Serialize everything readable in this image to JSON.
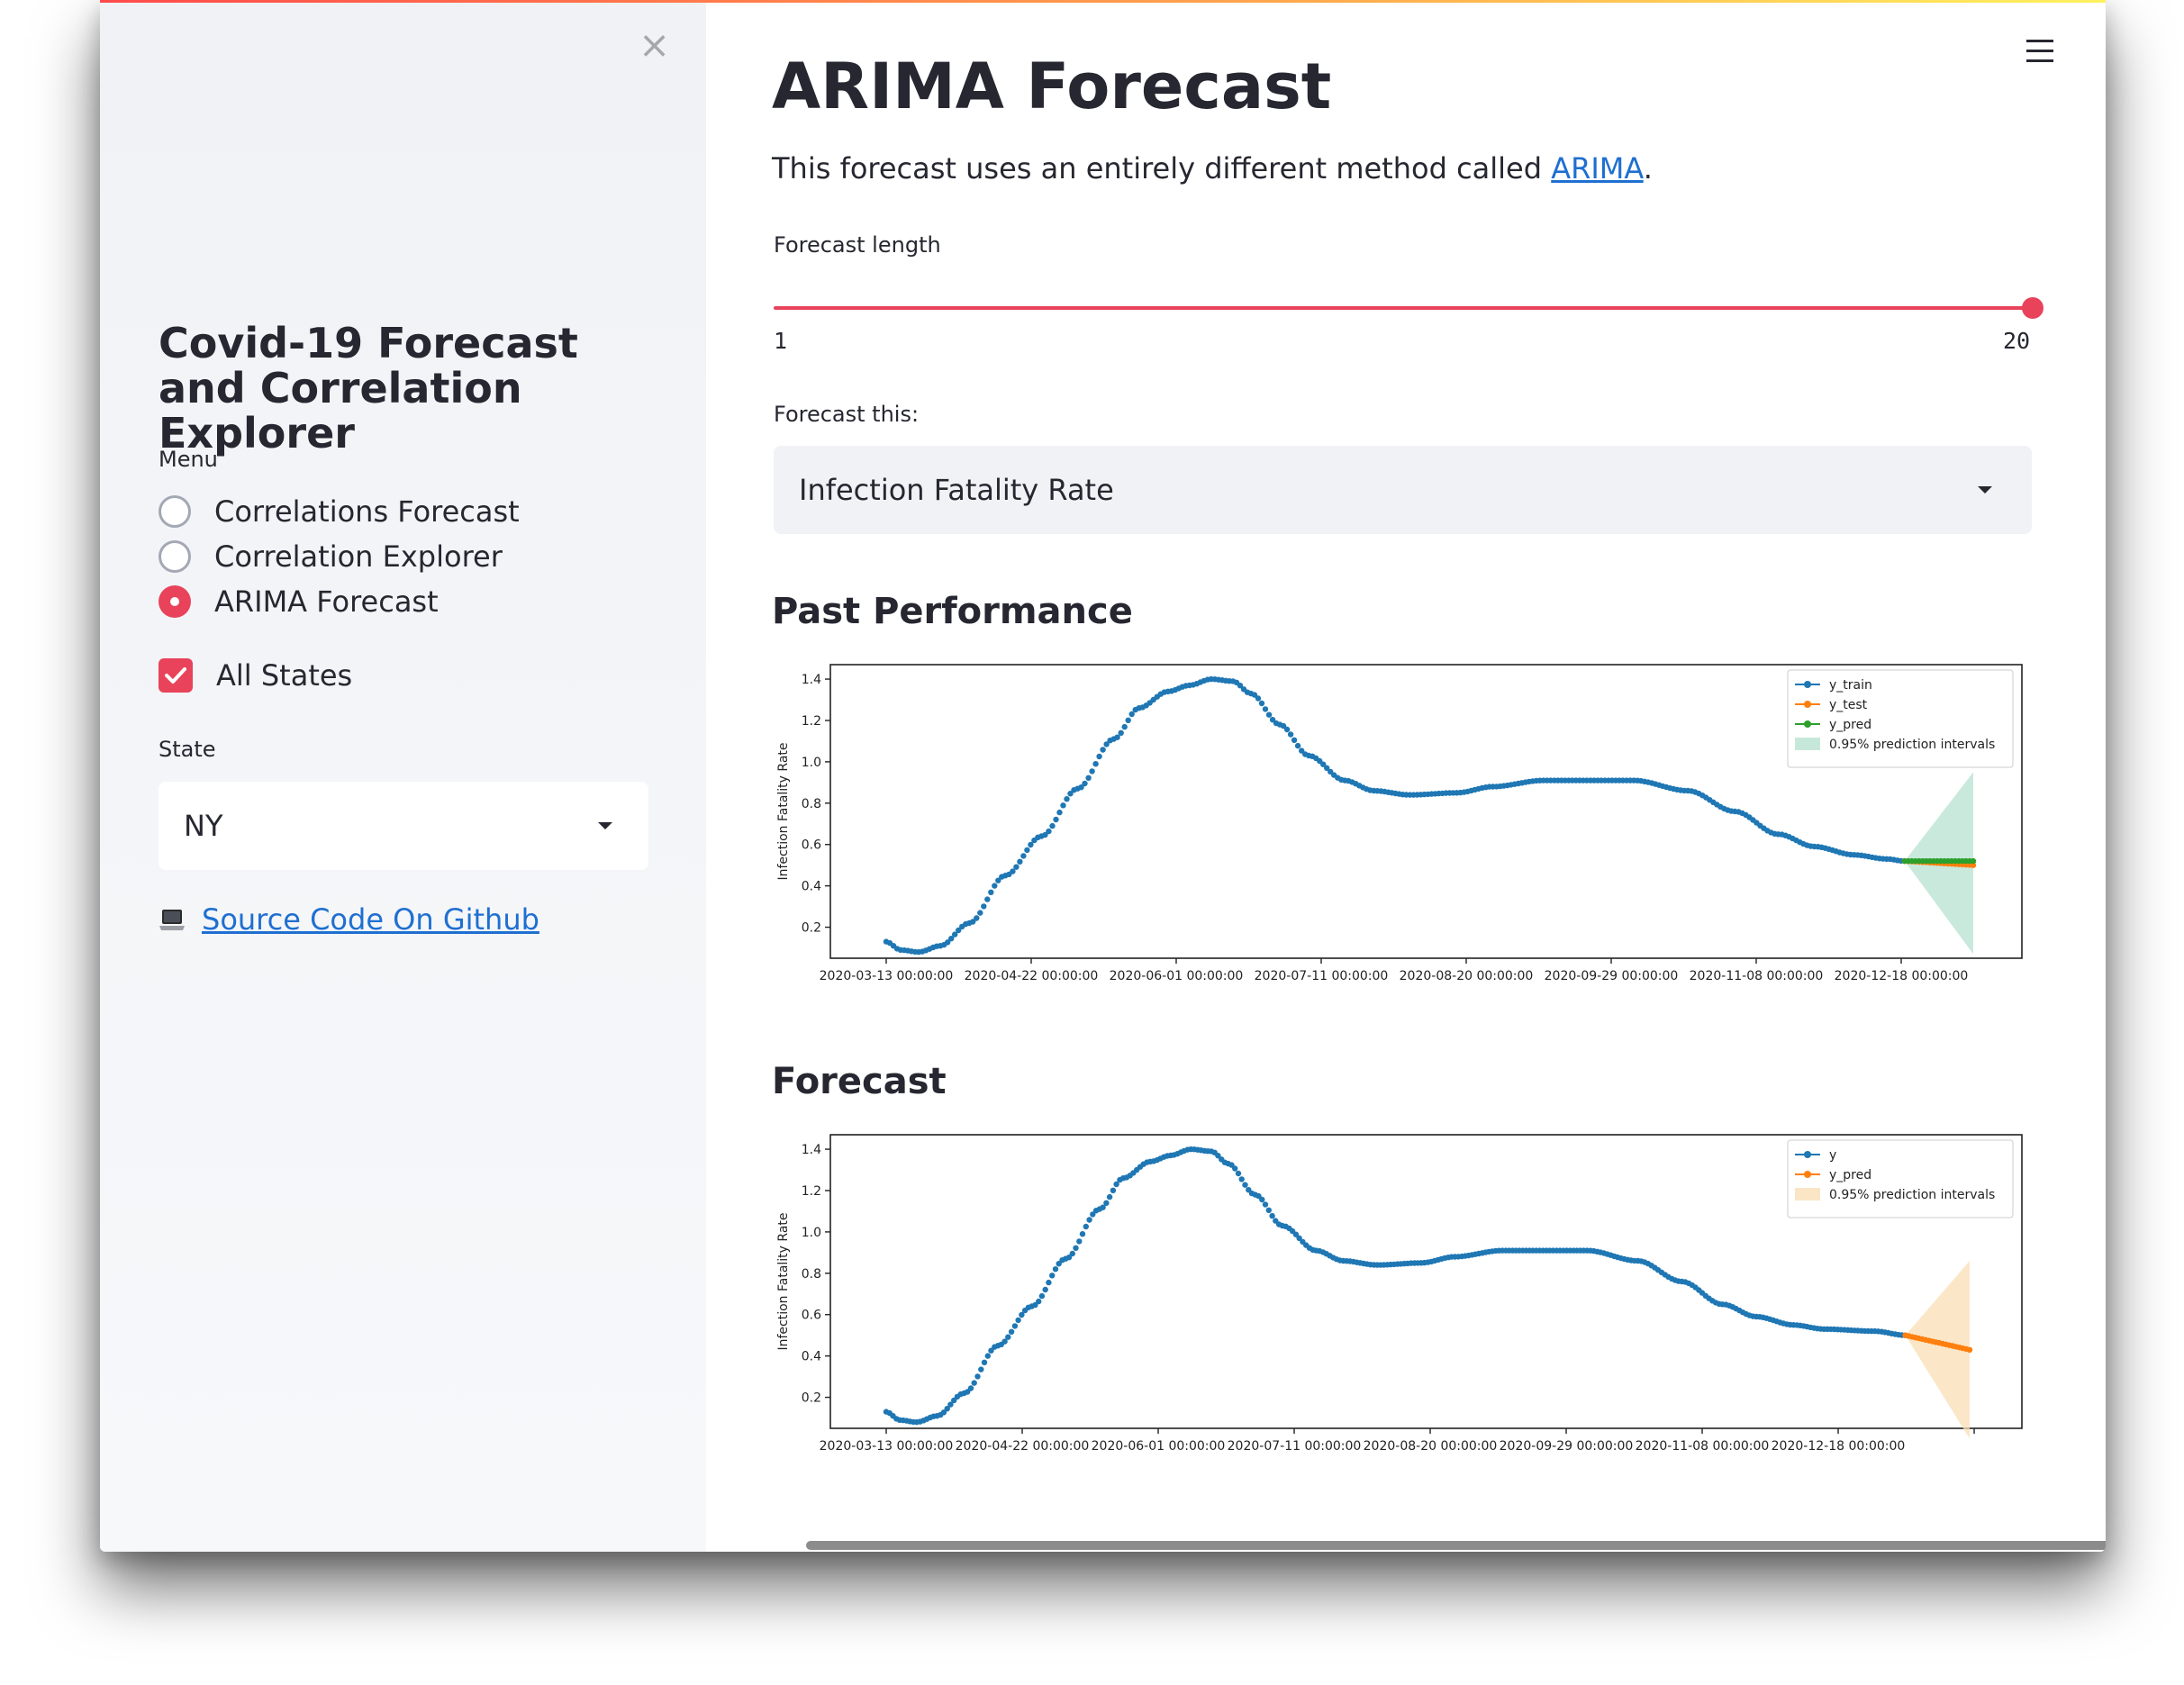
{
  "sidebar": {
    "close_label": "×",
    "title": "Covid-19 Forecast and Correlation Explorer",
    "menu_label": "Menu",
    "menu_items": [
      {
        "label": "Correlations Forecast",
        "selected": false
      },
      {
        "label": "Correlation Explorer",
        "selected": false
      },
      {
        "label": "ARIMA Forecast",
        "selected": true
      }
    ],
    "all_states_label": "All States",
    "all_states_checked": true,
    "state_label": "State",
    "state_value": "NY",
    "github_link": "Source Code On Github"
  },
  "main": {
    "title": "ARIMA Forecast",
    "intro_text": "This forecast uses an entirely different method called ",
    "intro_link": "ARIMA",
    "intro_end": ".",
    "forecast_length_label": "Forecast length",
    "slider": {
      "min": "1",
      "max": "20",
      "value": 20
    },
    "forecast_this_label": "Forecast this:",
    "forecast_this_value": "Infection Fatality Rate",
    "past_performance_title": "Past Performance",
    "forecast_title": "Forecast"
  },
  "colors": {
    "accent": "#e8435a",
    "link": "#1f6fd1",
    "y_series": "#1f77b4",
    "test_series": "#ff7f0e",
    "pred_green": "#2ca02c",
    "interval_green": "#b8e2d2",
    "interval_orange": "#f9dfb5"
  },
  "chart_data": [
    {
      "type": "line",
      "title": "Past Performance",
      "xlabel": "",
      "ylabel": "Infection Fatality Rate",
      "ylim": [
        0.05,
        1.47
      ],
      "x_tick_labels": [
        "2020-03-13 00:00:00",
        "2020-04-22 00:00:00",
        "2020-06-01 00:00:00",
        "2020-07-11 00:00:00",
        "2020-08-20 00:00:00",
        "2020-09-29 00:00:00",
        "2020-11-08 00:00:00",
        "2020-12-18 00:00:00"
      ],
      "y_ticks": [
        0.2,
        0.4,
        0.6,
        0.8,
        1.0,
        1.2,
        1.4
      ],
      "legend": {
        "placement": "top-right",
        "entries": [
          "y_train",
          "y_test",
          "y_pred",
          "0.95% prediction intervals"
        ]
      },
      "day_range": [
        0,
        300
      ],
      "y_anchors": [
        [
          0,
          0.13
        ],
        [
          4,
          0.09
        ],
        [
          9,
          0.08
        ],
        [
          15,
          0.11
        ],
        [
          23,
          0.22
        ],
        [
          33,
          0.45
        ],
        [
          43,
          0.64
        ],
        [
          53,
          0.87
        ],
        [
          63,
          1.11
        ],
        [
          70,
          1.26
        ],
        [
          78,
          1.34
        ],
        [
          84,
          1.37
        ],
        [
          90,
          1.4
        ],
        [
          96,
          1.39
        ],
        [
          101,
          1.33
        ],
        [
          109,
          1.18
        ],
        [
          117,
          1.03
        ],
        [
          127,
          0.91
        ],
        [
          135,
          0.86
        ],
        [
          145,
          0.84
        ],
        [
          158,
          0.85
        ],
        [
          168,
          0.88
        ],
        [
          182,
          0.91
        ],
        [
          196,
          0.91
        ],
        [
          207,
          0.91
        ],
        [
          222,
          0.86
        ],
        [
          235,
          0.76
        ],
        [
          247,
          0.65
        ],
        [
          257,
          0.59
        ],
        [
          268,
          0.55
        ],
        [
          277,
          0.53
        ],
        [
          282,
          0.52
        ]
      ],
      "series": [
        {
          "name": "y_train",
          "day_range": [
            0,
            282
          ]
        },
        {
          "name": "y_test",
          "day_range": [
            282,
            301
          ],
          "start": 0.52,
          "end": 0.5
        },
        {
          "name": "y_pred",
          "day_range": [
            282,
            301
          ],
          "start": 0.52,
          "end": 0.52
        }
      ],
      "prediction_interval": {
        "day_range": [
          282,
          301
        ],
        "lower_end": 0.07,
        "upper_end": 0.95
      }
    },
    {
      "type": "line",
      "title": "Forecast",
      "xlabel": "",
      "ylabel": "Infection Fatality Rate",
      "ylim": [
        0.05,
        1.47
      ],
      "x_tick_labels": [
        "2020-03-13 00:00:00",
        "2020-04-22 00:00:00",
        "2020-06-01 00:00:00",
        "2020-07-11 00:00:00",
        "2020-08-20 00:00:00",
        "2020-09-29 00:00:00",
        "2020-11-08 00:00:00",
        "2020-12-18 00:00:00"
      ],
      "y_ticks": [
        0.2,
        0.4,
        0.6,
        0.8,
        1.0,
        1.2,
        1.4
      ],
      "legend": {
        "placement": "top-right",
        "entries": [
          "y",
          "y_pred",
          "0.95% prediction intervals"
        ]
      },
      "day_range": [
        0,
        320
      ],
      "y_anchors": [
        [
          0,
          0.13
        ],
        [
          4,
          0.09
        ],
        [
          9,
          0.08
        ],
        [
          15,
          0.11
        ],
        [
          23,
          0.22
        ],
        [
          33,
          0.45
        ],
        [
          43,
          0.64
        ],
        [
          53,
          0.87
        ],
        [
          63,
          1.11
        ],
        [
          70,
          1.26
        ],
        [
          78,
          1.34
        ],
        [
          84,
          1.37
        ],
        [
          90,
          1.4
        ],
        [
          96,
          1.39
        ],
        [
          101,
          1.33
        ],
        [
          109,
          1.18
        ],
        [
          117,
          1.03
        ],
        [
          127,
          0.91
        ],
        [
          135,
          0.86
        ],
        [
          145,
          0.84
        ],
        [
          158,
          0.85
        ],
        [
          168,
          0.88
        ],
        [
          182,
          0.91
        ],
        [
          196,
          0.91
        ],
        [
          207,
          0.91
        ],
        [
          222,
          0.86
        ],
        [
          235,
          0.76
        ],
        [
          247,
          0.65
        ],
        [
          257,
          0.59
        ],
        [
          268,
          0.55
        ],
        [
          277,
          0.53
        ],
        [
          292,
          0.52
        ],
        [
          301,
          0.5
        ]
      ],
      "series": [
        {
          "name": "y",
          "day_range": [
            0,
            301
          ]
        },
        {
          "name": "y_pred",
          "day_range": [
            301,
            320
          ],
          "start": 0.5,
          "end": 0.43
        }
      ],
      "prediction_interval": {
        "day_range": [
          301,
          320
        ],
        "lower_end": 0.0,
        "upper_end": 0.86
      }
    }
  ]
}
